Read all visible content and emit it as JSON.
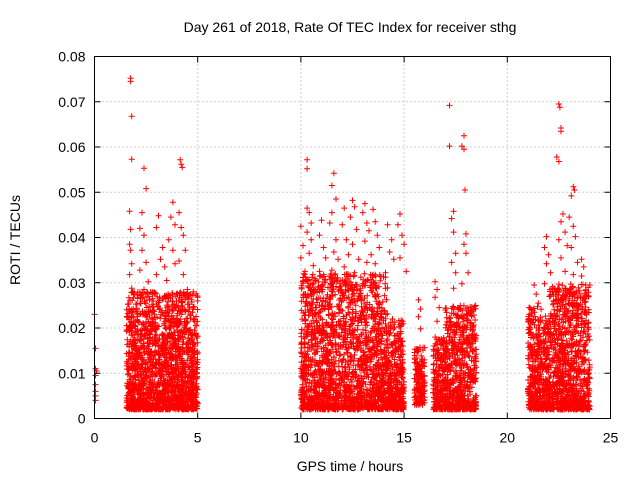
{
  "chart_data": {
    "type": "scatter",
    "title": "Day 261 of 2018, Rate Of TEC Index for receiver sthg",
    "xlabel": "GPS time / hours",
    "ylabel": "ROTI / TECUs",
    "xlim": [
      0,
      25
    ],
    "ylim": [
      0,
      0.08
    ],
    "xticks": [
      0,
      5,
      10,
      15,
      20,
      25
    ],
    "xtick_labels": [
      "0",
      "5",
      "10",
      "15",
      "20",
      "25"
    ],
    "yticks": [
      0,
      0.01,
      0.02,
      0.03,
      0.04,
      0.05,
      0.06,
      0.07,
      0.08
    ],
    "ytick_labels": [
      "0",
      "0.01",
      "0.02",
      "0.03",
      "0.04",
      "0.05",
      "0.06",
      "0.07",
      "0.08"
    ],
    "grid": true,
    "marker": "+",
    "color": "#ff0000",
    "series": [
      {
        "name": "ROTI",
        "points": [
          [
            0.0,
            0.023
          ],
          [
            0.05,
            0.0155
          ],
          [
            0.05,
            0.011
          ],
          [
            0.05,
            0.0095
          ],
          [
            0.05,
            0.0075
          ],
          [
            0.05,
            0.006
          ],
          [
            0.05,
            0.005
          ],
          [
            0.05,
            0.004
          ],
          [
            0.1,
            0.0105
          ],
          [
            1.75,
            0.0752
          ],
          [
            1.75,
            0.0745
          ],
          [
            1.8,
            0.0668
          ],
          [
            1.8,
            0.0573
          ],
          [
            1.7,
            0.0458
          ],
          [
            1.75,
            0.0418
          ],
          [
            1.7,
            0.0385
          ],
          [
            1.75,
            0.0372
          ],
          [
            1.8,
            0.0342
          ],
          [
            1.7,
            0.0318
          ],
          [
            1.8,
            0.0288
          ],
          [
            2.4,
            0.0553
          ],
          [
            2.5,
            0.0508
          ],
          [
            2.3,
            0.0455
          ],
          [
            2.2,
            0.042
          ],
          [
            2.4,
            0.0405
          ],
          [
            2.3,
            0.0372
          ],
          [
            2.5,
            0.0345
          ],
          [
            2.2,
            0.0328
          ],
          [
            2.6,
            0.0302
          ],
          [
            2.4,
            0.0285
          ],
          [
            3.1,
            0.0448
          ],
          [
            3.0,
            0.0422
          ],
          [
            3.3,
            0.0378
          ],
          [
            3.2,
            0.0352
          ],
          [
            3.4,
            0.0335
          ],
          [
            3.0,
            0.0318
          ],
          [
            3.5,
            0.0305
          ],
          [
            3.8,
            0.0478
          ],
          [
            3.7,
            0.0445
          ],
          [
            3.9,
            0.0428
          ],
          [
            3.6,
            0.0395
          ],
          [
            3.8,
            0.0372
          ],
          [
            3.9,
            0.0342
          ],
          [
            4.15,
            0.0572
          ],
          [
            4.2,
            0.0562
          ],
          [
            4.25,
            0.0555
          ],
          [
            4.1,
            0.0455
          ],
          [
            4.2,
            0.0422
          ],
          [
            4.3,
            0.0405
          ],
          [
            4.4,
            0.0372
          ],
          [
            4.1,
            0.0348
          ],
          [
            4.3,
            0.0318
          ],
          [
            4.5,
            0.0285
          ],
          [
            10.0,
            0.0425
          ],
          [
            10.1,
            0.0382
          ],
          [
            10.0,
            0.0355
          ],
          [
            10.2,
            0.0325
          ],
          [
            10.1,
            0.0302
          ],
          [
            10.3,
            0.0572
          ],
          [
            10.3,
            0.0552
          ],
          [
            10.3,
            0.0465
          ],
          [
            10.4,
            0.0455
          ],
          [
            10.5,
            0.0432
          ],
          [
            10.3,
            0.0412
          ],
          [
            10.5,
            0.0395
          ],
          [
            10.4,
            0.0365
          ],
          [
            10.6,
            0.0338
          ],
          [
            11.0,
            0.0438
          ],
          [
            10.9,
            0.0405
          ],
          [
            11.1,
            0.0378
          ],
          [
            11.2,
            0.0355
          ],
          [
            10.9,
            0.0325
          ],
          [
            11.6,
            0.0542
          ],
          [
            11.5,
            0.0515
          ],
          [
            11.7,
            0.0485
          ],
          [
            11.5,
            0.0455
          ],
          [
            11.4,
            0.0432
          ],
          [
            11.7,
            0.0395
          ],
          [
            11.6,
            0.0368
          ],
          [
            11.8,
            0.0352
          ],
          [
            11.5,
            0.0328
          ],
          [
            12.1,
            0.0465
          ],
          [
            12.0,
            0.0428
          ],
          [
            12.2,
            0.0395
          ],
          [
            12.3,
            0.0362
          ],
          [
            12.1,
            0.0335
          ],
          [
            12.5,
            0.0482
          ],
          [
            12.6,
            0.0468
          ],
          [
            12.4,
            0.0445
          ],
          [
            12.7,
            0.0418
          ],
          [
            12.5,
            0.0385
          ],
          [
            12.8,
            0.0352
          ],
          [
            12.6,
            0.0322
          ],
          [
            13.1,
            0.0475
          ],
          [
            13.0,
            0.0455
          ],
          [
            13.2,
            0.0432
          ],
          [
            13.3,
            0.0415
          ],
          [
            13.1,
            0.0392
          ],
          [
            13.4,
            0.0362
          ],
          [
            13.2,
            0.0345
          ],
          [
            13.5,
            0.0318
          ],
          [
            13.5,
            0.0462
          ],
          [
            13.6,
            0.0435
          ],
          [
            13.7,
            0.0405
          ],
          [
            13.8,
            0.0378
          ],
          [
            13.6,
            0.0342
          ],
          [
            14.2,
            0.0428
          ],
          [
            14.4,
            0.0395
          ],
          [
            14.3,
            0.0368
          ],
          [
            14.5,
            0.0352
          ],
          [
            14.1,
            0.0322
          ],
          [
            14.8,
            0.0452
          ],
          [
            14.7,
            0.0428
          ],
          [
            14.9,
            0.0405
          ],
          [
            15.0,
            0.0385
          ],
          [
            14.8,
            0.0355
          ],
          [
            15.1,
            0.0325
          ],
          [
            15.7,
            0.0262
          ],
          [
            15.8,
            0.0242
          ],
          [
            15.7,
            0.0225
          ],
          [
            15.8,
            0.0198
          ],
          [
            16.5,
            0.0302
          ],
          [
            16.6,
            0.0285
          ],
          [
            16.5,
            0.0268
          ],
          [
            16.7,
            0.0245
          ],
          [
            16.6,
            0.0215
          ],
          [
            17.2,
            0.0692
          ],
          [
            17.2,
            0.0602
          ],
          [
            17.4,
            0.0458
          ],
          [
            17.3,
            0.0442
          ],
          [
            17.4,
            0.0412
          ],
          [
            17.5,
            0.0365
          ],
          [
            17.3,
            0.0345
          ],
          [
            17.5,
            0.0322
          ],
          [
            17.4,
            0.0288
          ],
          [
            17.9,
            0.0625
          ],
          [
            17.8,
            0.0602
          ],
          [
            17.9,
            0.0595
          ],
          [
            17.95,
            0.0505
          ],
          [
            18.0,
            0.0408
          ],
          [
            17.9,
            0.0385
          ],
          [
            18.0,
            0.0365
          ],
          [
            18.1,
            0.0322
          ],
          [
            17.8,
            0.0298
          ],
          [
            21.3,
            0.0295
          ],
          [
            21.4,
            0.0275
          ],
          [
            21.5,
            0.0255
          ],
          [
            21.9,
            0.0402
          ],
          [
            21.8,
            0.0378
          ],
          [
            22.0,
            0.0362
          ],
          [
            21.9,
            0.0342
          ],
          [
            22.1,
            0.0322
          ],
          [
            21.8,
            0.0298
          ],
          [
            22.5,
            0.0695
          ],
          [
            22.55,
            0.0688
          ],
          [
            22.6,
            0.0642
          ],
          [
            22.6,
            0.0635
          ],
          [
            22.4,
            0.0578
          ],
          [
            22.5,
            0.0568
          ],
          [
            22.7,
            0.0452
          ],
          [
            22.6,
            0.0435
          ],
          [
            22.8,
            0.0412
          ],
          [
            22.5,
            0.0395
          ],
          [
            22.9,
            0.0382
          ],
          [
            22.6,
            0.0355
          ],
          [
            22.8,
            0.0325
          ],
          [
            23.2,
            0.0512
          ],
          [
            23.25,
            0.0505
          ],
          [
            23.1,
            0.0492
          ],
          [
            23.0,
            0.0445
          ],
          [
            23.2,
            0.0425
          ],
          [
            23.3,
            0.0402
          ],
          [
            23.1,
            0.0378
          ],
          [
            23.4,
            0.0345
          ],
          [
            23.2,
            0.0318
          ],
          [
            23.6,
            0.0352
          ],
          [
            23.7,
            0.0335
          ],
          [
            23.6,
            0.0315
          ],
          [
            23.8,
            0.0295
          ]
        ],
        "dense_bands": [
          {
            "x": [
              1.55,
              5.0
            ],
            "ymin": 0.002,
            "ymax": 0.028,
            "count": 1700
          },
          {
            "x": [
              10.0,
              14.2
            ],
            "ymin": 0.002,
            "ymax": 0.032,
            "count": 1800
          },
          {
            "x": [
              14.2,
              15.0
            ],
            "ymin": 0.002,
            "ymax": 0.022,
            "count": 350
          },
          {
            "x": [
              15.5,
              16.0
            ],
            "ymin": 0.003,
            "ymax": 0.016,
            "count": 160
          },
          {
            "x": [
              16.4,
              17.0
            ],
            "ymin": 0.002,
            "ymax": 0.018,
            "count": 200
          },
          {
            "x": [
              17.0,
              18.5
            ],
            "ymin": 0.002,
            "ymax": 0.025,
            "count": 600
          },
          {
            "x": [
              21.0,
              22.0
            ],
            "ymin": 0.002,
            "ymax": 0.025,
            "count": 420
          },
          {
            "x": [
              22.0,
              24.0
            ],
            "ymin": 0.002,
            "ymax": 0.03,
            "count": 900
          }
        ]
      }
    ]
  }
}
